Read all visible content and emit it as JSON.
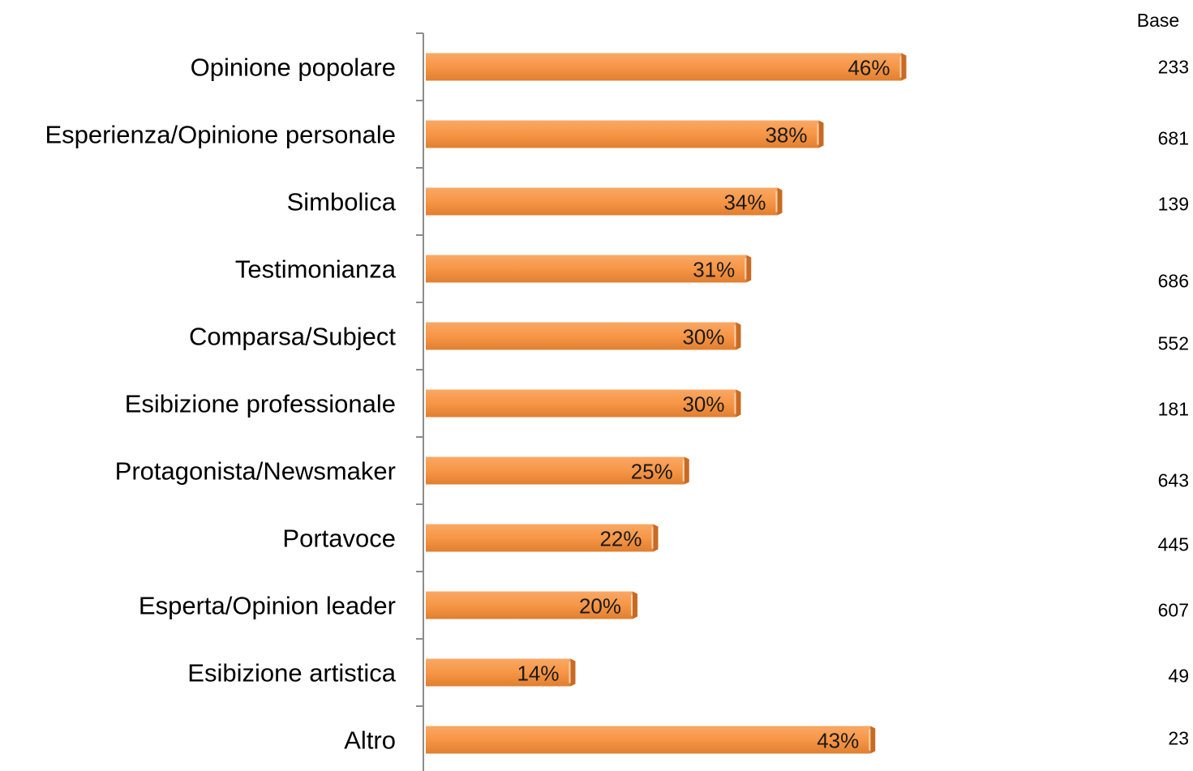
{
  "chart_data": {
    "type": "bar",
    "orientation": "horizontal",
    "categories": [
      "Opinione popolare",
      "Esperienza/Opinione personale",
      "Simbolica",
      "Testimonianza",
      "Comparsa/Subject",
      "Esibizione professionale",
      "Protagonista/Newsmaker",
      "Portavoce",
      "Esperta/Opinion leader",
      "Esibizione artistica",
      "Altro"
    ],
    "values": [
      46,
      38,
      34,
      31,
      30,
      30,
      25,
      22,
      20,
      14,
      43
    ],
    "value_labels": [
      "46%",
      "38%",
      "34%",
      "31%",
      "30%",
      "30%",
      "25%",
      "22%",
      "20%",
      "14%",
      "43%"
    ],
    "base_title": "Base",
    "base_values": [
      "233",
      "681",
      "139",
      "686",
      "552",
      "181",
      "643",
      "445",
      "607",
      "49",
      "23"
    ],
    "xlim": [
      0,
      100
    ],
    "grid": false,
    "bar_color": "#f79646"
  }
}
